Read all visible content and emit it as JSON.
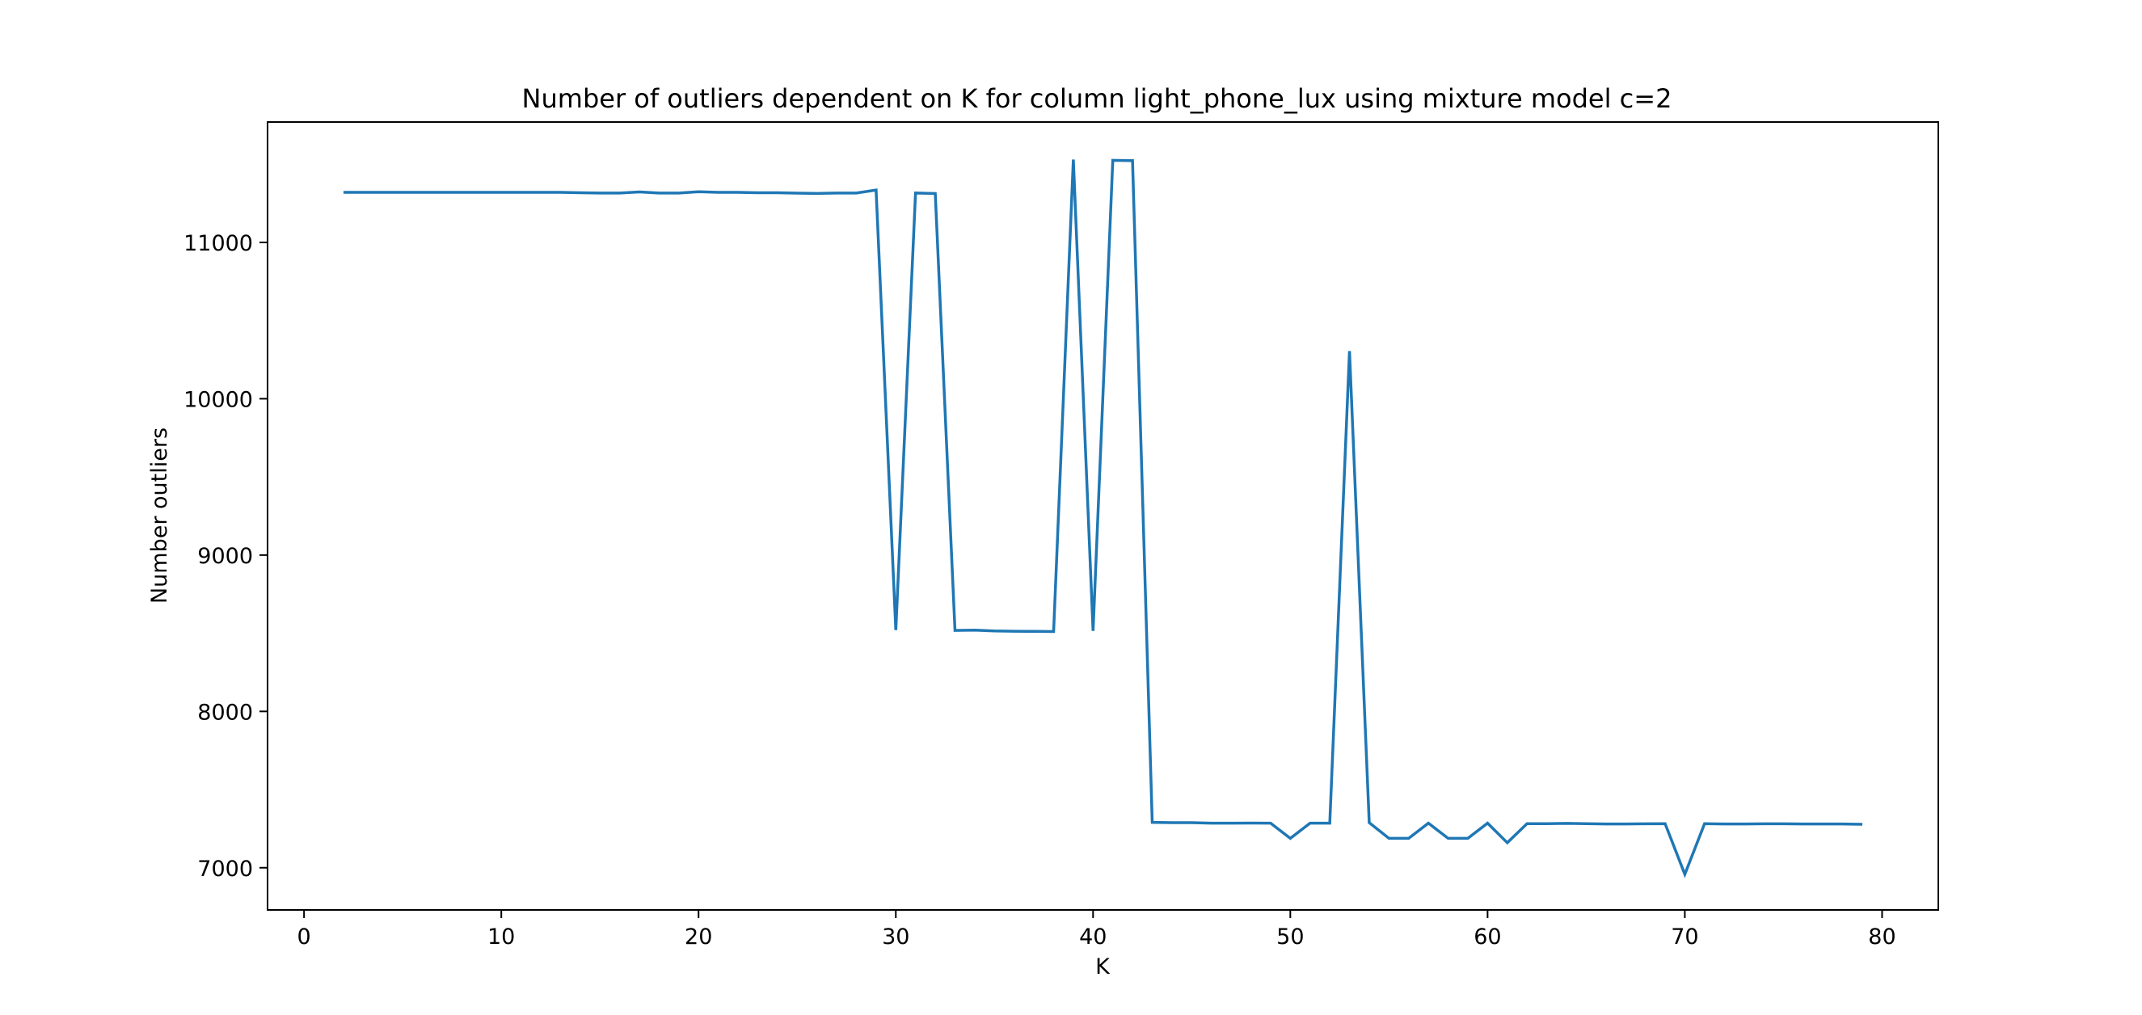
{
  "chart_data": {
    "type": "line",
    "title": "Number of outliers dependent on K for column light_phone_lux using mixture model c=2",
    "xlabel": "K",
    "ylabel": "Number outliers",
    "xlim": [
      -1.85,
      82.85
    ],
    "ylim": [
      6730,
      11770
    ],
    "xticks": [
      0,
      10,
      20,
      30,
      40,
      50,
      60,
      70,
      80
    ],
    "yticks": [
      7000,
      8000,
      9000,
      10000,
      11000
    ],
    "grid": false,
    "line_color": "#1f77b4",
    "series": [
      {
        "x": [
          2,
          3,
          4,
          5,
          6,
          7,
          8,
          9,
          10,
          11,
          12,
          13,
          14,
          15,
          16,
          17,
          18,
          19,
          20,
          21,
          22,
          23,
          24,
          25,
          26,
          27,
          28,
          29,
          30,
          31,
          32,
          33,
          34,
          35,
          36,
          37,
          38,
          39,
          40,
          41,
          42,
          43,
          44,
          45,
          46,
          47,
          48,
          49,
          50,
          51,
          52,
          53,
          54,
          55,
          56,
          57,
          58,
          59,
          60,
          61,
          62,
          63,
          64,
          65,
          66,
          67,
          68,
          69,
          70,
          71,
          72,
          73,
          74,
          75,
          76,
          77,
          78,
          79
        ],
        "values": [
          11320,
          11320,
          11320,
          11320,
          11320,
          11320,
          11320,
          11320,
          11320,
          11320,
          11320,
          11320,
          11318,
          11316,
          11316,
          11323,
          11316,
          11316,
          11324,
          11320,
          11320,
          11318,
          11318,
          11315,
          11313,
          11316,
          11316,
          11335,
          8520,
          11316,
          11313,
          8518,
          8520,
          8515,
          8513,
          8512,
          8511,
          11530,
          8515,
          11525,
          11523,
          7290,
          7288,
          7288,
          7285,
          7285,
          7286,
          7285,
          7188,
          7285,
          7285,
          10305,
          7288,
          7188,
          7188,
          7285,
          7188,
          7188,
          7285,
          7160,
          7282,
          7282,
          7284,
          7282,
          7280,
          7280,
          7281,
          7282,
          6958,
          7282,
          7280,
          7280,
          7281,
          7281,
          7280,
          7280,
          7280,
          7278
        ]
      }
    ]
  }
}
